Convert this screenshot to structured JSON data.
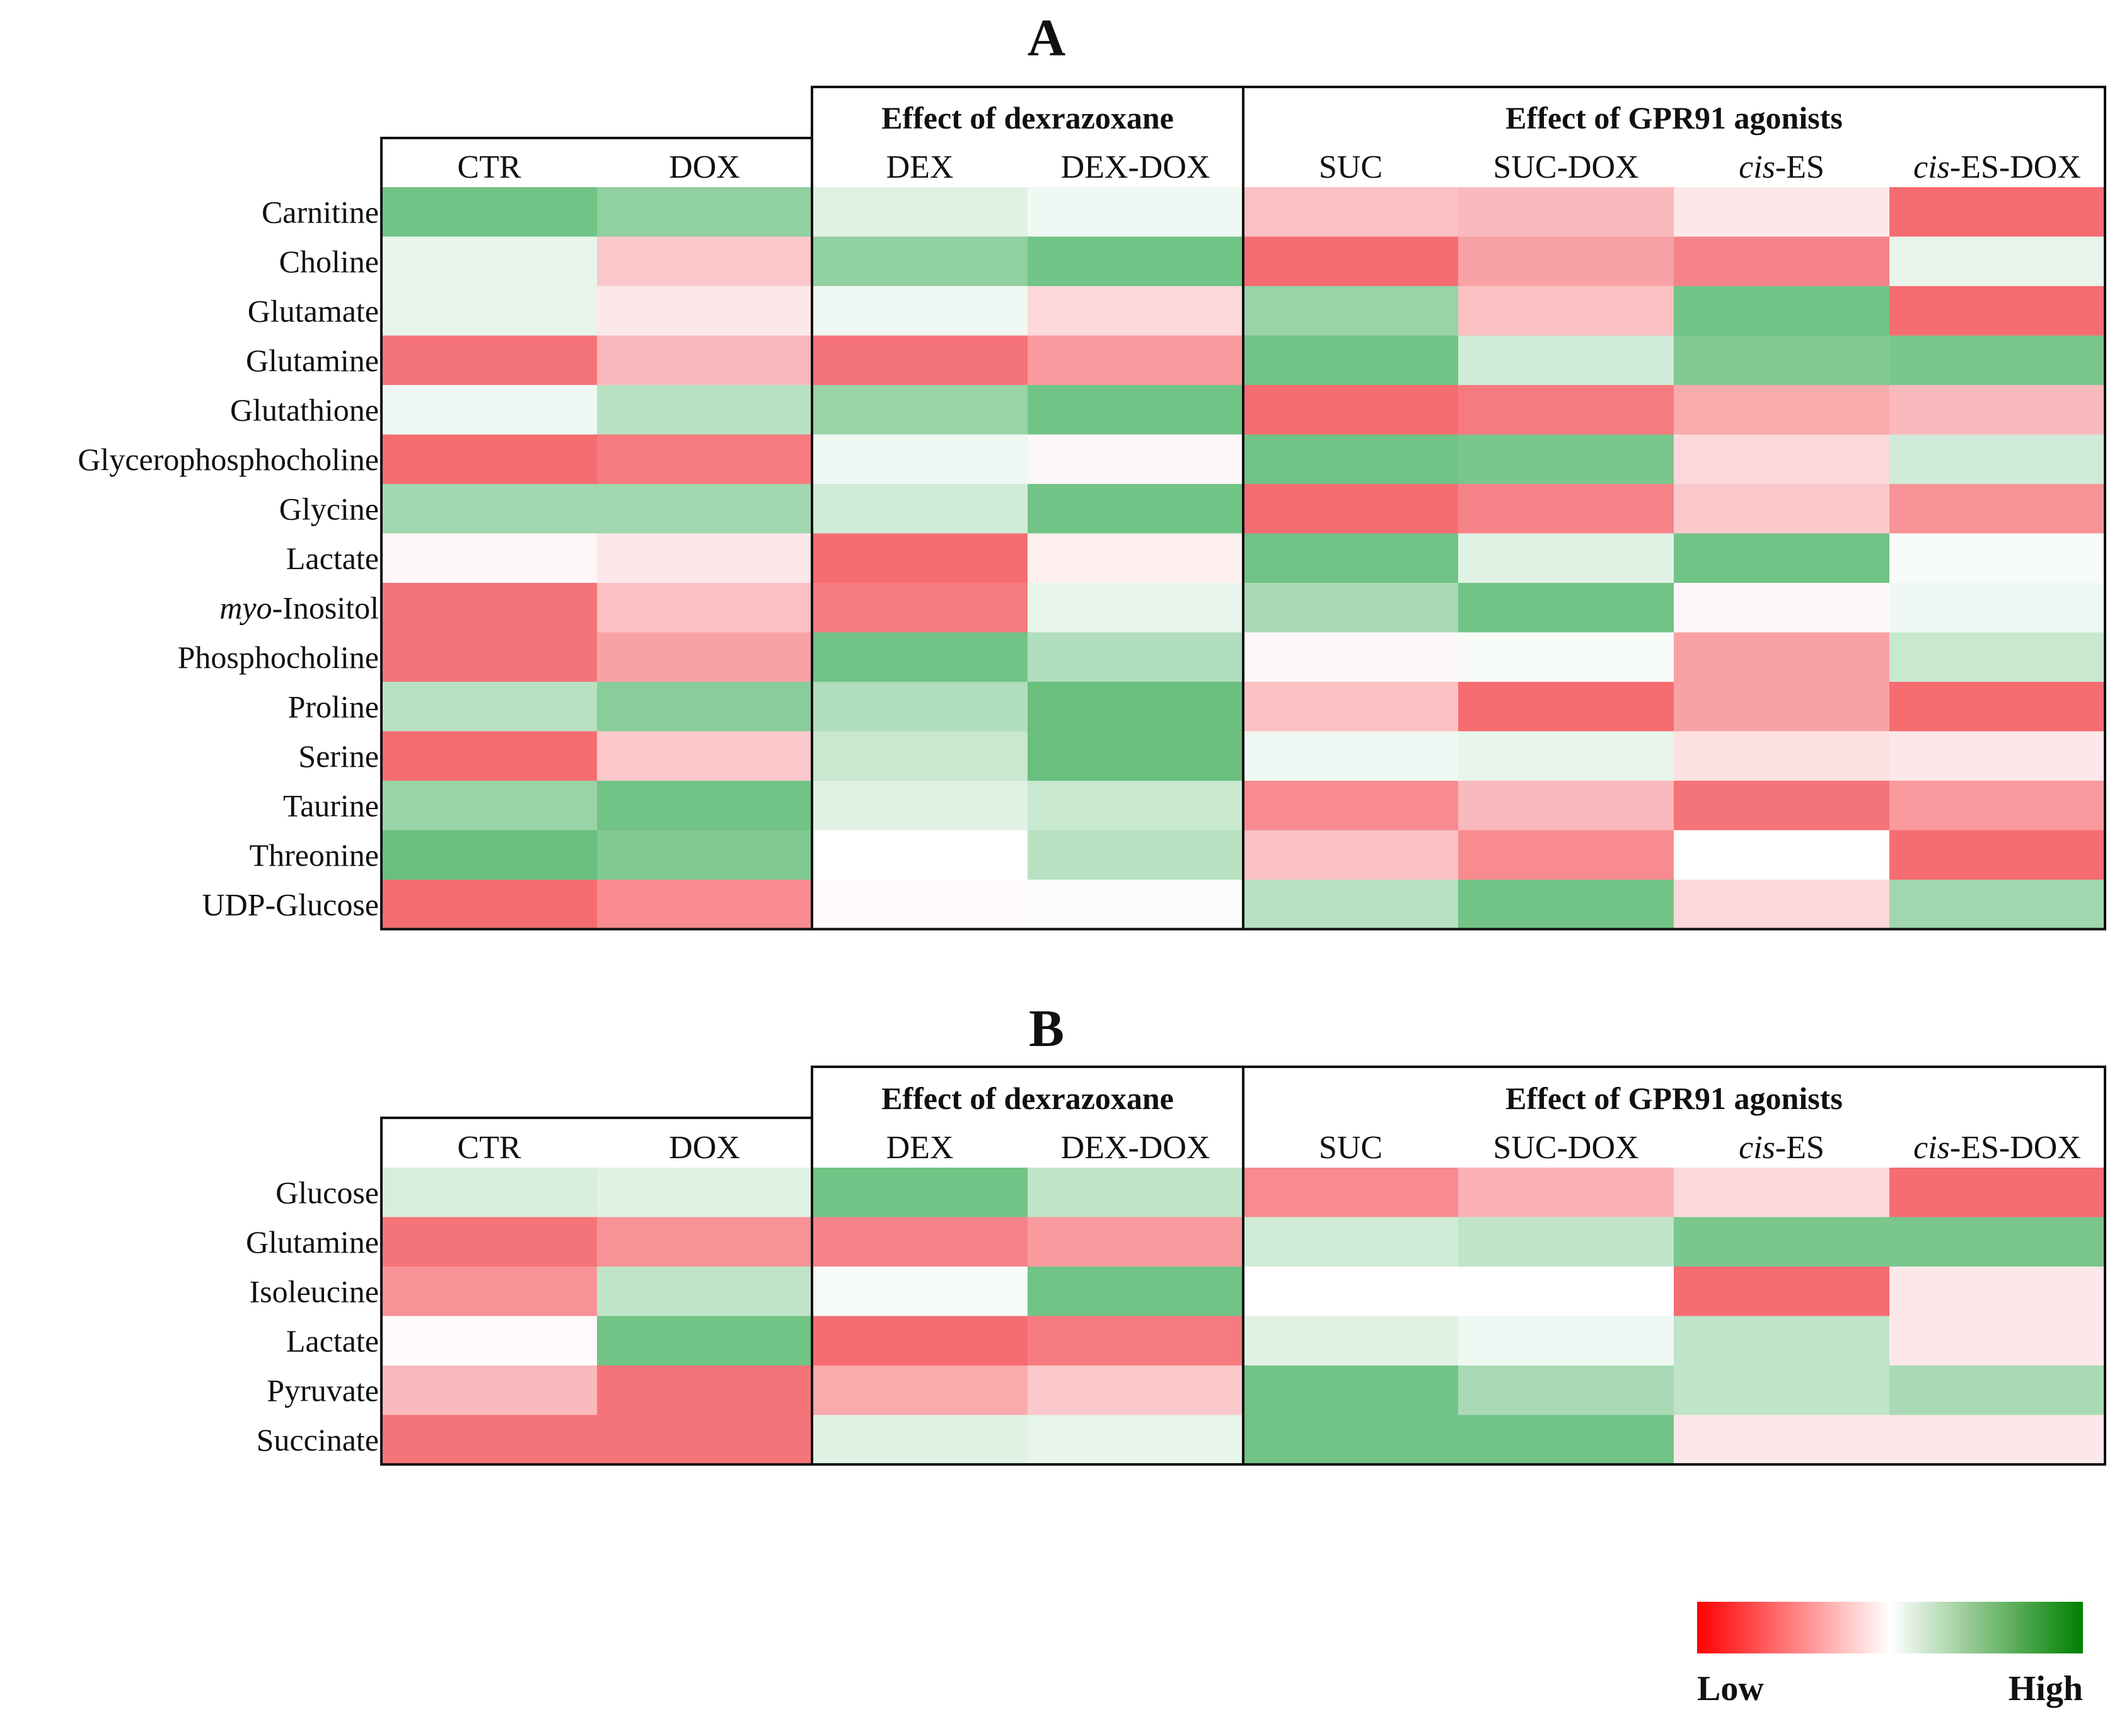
{
  "chart_data": [
    {
      "type": "heatmap",
      "title": "A",
      "groups": [
        {
          "title": "",
          "columns": [
            "CTR",
            "DOX"
          ]
        },
        {
          "title": "Effect of dexrazoxane",
          "columns": [
            "DEX",
            "DEX-DOX"
          ]
        },
        {
          "title": "Effect of GPR91 agonists",
          "columns": [
            "SUC",
            "SUC-DOX",
            "cis-ES",
            "cis-ES-DOX"
          ]
        }
      ],
      "columns": [
        "CTR",
        "DOX",
        "DEX",
        "DEX-DOX",
        "SUC",
        "SUC-DOX",
        "cis-ES",
        "cis-ES-DOX"
      ],
      "rows": [
        "Carnitine",
        "Choline",
        "Glutamate",
        "Glutamine",
        "Glutathione",
        "Glycerophosphocholine",
        "Glycine",
        "Lactate",
        "myo-Inositol",
        "Phosphocholine",
        "Proline",
        "Serine",
        "Taurine",
        "Threonine",
        "UDP-Glucose"
      ],
      "values": [
        [
          0.9,
          0.7,
          0.2,
          0.1,
          -0.4,
          -0.45,
          -0.15,
          -0.95
        ],
        [
          0.15,
          -0.35,
          0.7,
          0.9,
          -0.95,
          -0.6,
          -0.8,
          0.15
        ],
        [
          0.15,
          -0.15,
          0.1,
          -0.25,
          0.65,
          -0.4,
          0.9,
          -0.95
        ],
        [
          -0.9,
          -0.45,
          -0.9,
          -0.65,
          0.9,
          0.3,
          0.8,
          0.85
        ],
        [
          0.1,
          0.45,
          0.65,
          0.9,
          -0.95,
          -0.85,
          -0.55,
          -0.45
        ],
        [
          -0.95,
          -0.85,
          0.1,
          -0.05,
          0.9,
          0.85,
          -0.25,
          0.3
        ],
        [
          0.6,
          0.6,
          0.3,
          0.9,
          -0.95,
          -0.8,
          -0.35,
          -0.7
        ],
        [
          -0.05,
          -0.15,
          -0.95,
          -0.1,
          0.9,
          0.2,
          0.9,
          0.05
        ],
        [
          -0.9,
          -0.4,
          -0.85,
          0.15,
          0.55,
          0.9,
          -0.05,
          0.1
        ],
        [
          -0.9,
          -0.6,
          0.9,
          0.5,
          -0.05,
          0.05,
          -0.6,
          0.35
        ],
        [
          0.45,
          0.75,
          0.5,
          0.95,
          -0.4,
          -0.95,
          -0.6,
          -0.95
        ],
        [
          -0.95,
          -0.35,
          0.35,
          0.95,
          0.1,
          0.15,
          -0.2,
          -0.15
        ],
        [
          0.65,
          0.9,
          0.2,
          0.35,
          -0.75,
          -0.45,
          -0.9,
          -0.65
        ],
        [
          0.95,
          0.8,
          0.0,
          0.45,
          -0.4,
          -0.75,
          0.0,
          -0.95
        ],
        [
          -0.95,
          -0.75,
          -0.03,
          0.03,
          0.45,
          0.9,
          -0.25,
          0.6
        ]
      ],
      "scale": {
        "min": -1,
        "max": 1,
        "low_label": "Low",
        "high_label": "High",
        "low_color": "#ff0000",
        "mid_color": "#ffffff",
        "high_color": "#008000"
      }
    },
    {
      "type": "heatmap",
      "title": "B",
      "groups": [
        {
          "title": "",
          "columns": [
            "CTR",
            "DOX"
          ]
        },
        {
          "title": "Effect of dexrazoxane",
          "columns": [
            "DEX",
            "DEX-DOX"
          ]
        },
        {
          "title": "Effect of GPR91 agonists",
          "columns": [
            "SUC",
            "SUC-DOX",
            "cis-ES",
            "cis-ES-DOX"
          ]
        }
      ],
      "columns": [
        "CTR",
        "DOX",
        "DEX",
        "DEX-DOX",
        "SUC",
        "SUC-DOX",
        "cis-ES",
        "cis-ES-DOX"
      ],
      "rows": [
        "Glucose",
        "Glutamine",
        "Isoleucine",
        "Lactate",
        "Pyruvate",
        "Succinate"
      ],
      "values": [
        [
          0.25,
          0.2,
          0.9,
          0.4,
          -0.75,
          -0.5,
          -0.25,
          -0.95
        ],
        [
          -0.9,
          -0.7,
          -0.8,
          -0.65,
          0.3,
          0.4,
          0.85,
          0.85
        ],
        [
          -0.7,
          0.4,
          0.05,
          0.9,
          0.0,
          0.0,
          -0.95,
          -0.15
        ],
        [
          -0.03,
          0.9,
          -0.95,
          -0.85,
          0.2,
          0.1,
          0.4,
          -0.15
        ],
        [
          -0.45,
          -0.9,
          -0.55,
          -0.35,
          0.9,
          0.55,
          0.4,
          0.55
        ],
        [
          -0.9,
          -0.9,
          0.2,
          0.15,
          0.9,
          0.9,
          -0.15,
          -0.15
        ]
      ],
      "scale": {
        "min": -1,
        "max": 1,
        "low_label": "Low",
        "high_label": "High",
        "low_color": "#ff0000",
        "mid_color": "#ffffff",
        "high_color": "#008000"
      }
    }
  ],
  "legend": {
    "low_label": "Low",
    "high_label": "High",
    "low_color": "#ff0000",
    "mid_color": "#ffffff",
    "high_color": "#008000"
  }
}
